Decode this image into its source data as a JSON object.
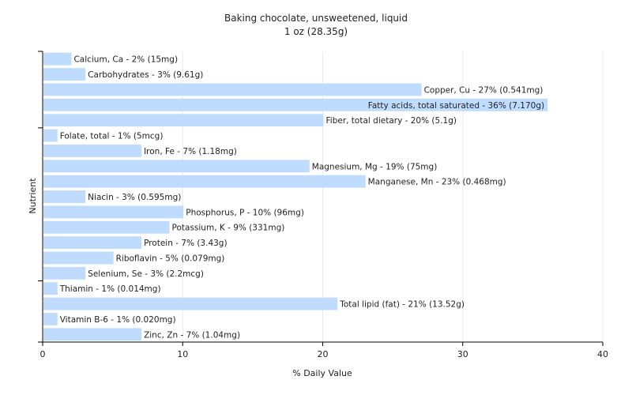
{
  "chart_data": {
    "type": "bar",
    "orientation": "horizontal",
    "title": "Baking chocolate, unsweetened, liquid",
    "subtitle": "1 oz (28.35g)",
    "xlabel": "% Daily Value",
    "ylabel": "Nutrient",
    "xlim": [
      0,
      40
    ],
    "xticks": [
      0,
      10,
      20,
      30,
      40
    ],
    "grid": true,
    "bar_color": "#bfdcff",
    "categories": [
      "Calcium, Ca",
      "Carbohydrates",
      "Copper, Cu",
      "Fatty acids, total saturated",
      "Fiber, total dietary",
      "Folate, total",
      "Iron, Fe",
      "Magnesium, Mg",
      "Manganese, Mn",
      "Niacin",
      "Phosphorus, P",
      "Potassium, K",
      "Protein",
      "Riboflavin",
      "Selenium, Se",
      "Thiamin",
      "Total lipid (fat)",
      "Vitamin B-6",
      "Zinc, Zn"
    ],
    "values": [
      2,
      3,
      27,
      36,
      20,
      1,
      7,
      19,
      23,
      3,
      10,
      9,
      7,
      5,
      3,
      1,
      21,
      1,
      7
    ],
    "labels": [
      "Calcium, Ca - 2% (15mg)",
      "Carbohydrates - 3% (9.61g)",
      "Copper, Cu - 27% (0.541mg)",
      "Fatty acids, total saturated - 36% (7.170g)",
      "Fiber, total dietary - 20% (5.1g)",
      "Folate, total - 1% (5mcg)",
      "Iron, Fe - 7% (1.18mg)",
      "Magnesium, Mg - 19% (75mg)",
      "Manganese, Mn - 23% (0.468mg)",
      "Niacin - 3% (0.595mg)",
      "Phosphorus, P - 10% (96mg)",
      "Potassium, K - 9% (331mg)",
      "Protein - 7% (3.43g)",
      "Riboflavin - 5% (0.079mg)",
      "Selenium, Se - 3% (2.2mcg)",
      "Thiamin - 1% (0.014mg)",
      "Total lipid (fat) - 21% (13.52g)",
      "Vitamin B-6 - 1% (0.020mg)",
      "Zinc, Zn - 7% (1.04mg)"
    ]
  }
}
